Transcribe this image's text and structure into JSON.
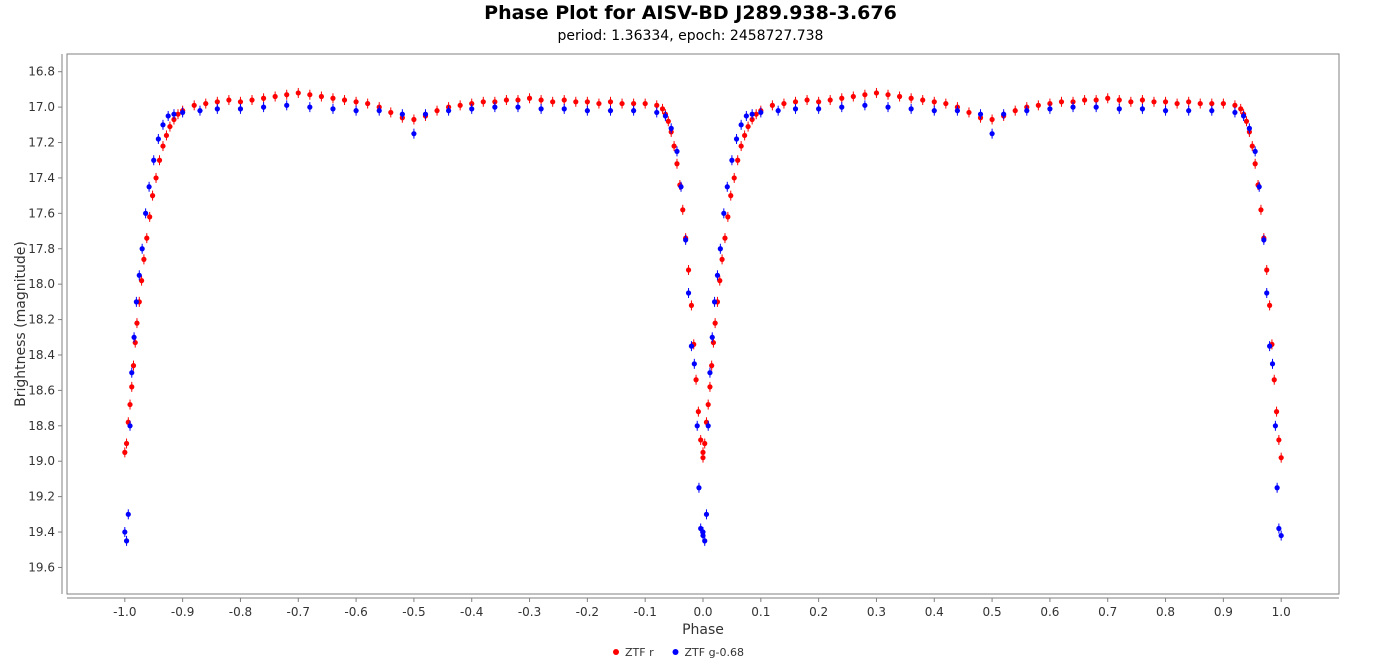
{
  "chart_data": {
    "type": "scatter",
    "title": "Phase Plot for AISV-BD J289.938-3.676",
    "subtitle": "period: 1.36334, epoch: 2458727.738",
    "xlabel": "Phase",
    "ylabel": "Brightness (magnitude)",
    "xlim": [
      -1.1,
      1.1
    ],
    "ylim": [
      16.7,
      19.75
    ],
    "y_inverted": true,
    "x_ticks": [
      "-1.0",
      "-0.9",
      "-0.8",
      "-0.7",
      "-0.6",
      "-0.5",
      "-0.4",
      "-0.3",
      "-0.2",
      "-0.1",
      "0.0",
      "0.1",
      "0.2",
      "0.3",
      "0.4",
      "0.5",
      "0.6",
      "0.7",
      "0.8",
      "0.9",
      "1.0"
    ],
    "y_ticks": [
      "16.8",
      "17.0",
      "17.2",
      "17.4",
      "17.6",
      "17.8",
      "18.0",
      "18.2",
      "18.4",
      "18.6",
      "18.8",
      "19.0",
      "19.2",
      "19.4",
      "19.6"
    ],
    "grid": false,
    "legend_placement": "bottom-center",
    "series": [
      {
        "name": "ZTF r",
        "color": "#ff0000",
        "points": [
          [
            0.0,
            18.95
          ],
          [
            0.003,
            18.9
          ],
          [
            0.006,
            18.78
          ],
          [
            0.009,
            18.68
          ],
          [
            0.012,
            18.58
          ],
          [
            0.015,
            18.46
          ],
          [
            0.018,
            18.33
          ],
          [
            0.021,
            18.22
          ],
          [
            0.025,
            18.1
          ],
          [
            0.029,
            17.98
          ],
          [
            0.033,
            17.86
          ],
          [
            0.038,
            17.74
          ],
          [
            0.043,
            17.62
          ],
          [
            0.048,
            17.5
          ],
          [
            0.054,
            17.4
          ],
          [
            0.06,
            17.3
          ],
          [
            0.066,
            17.22
          ],
          [
            0.072,
            17.16
          ],
          [
            0.078,
            17.11
          ],
          [
            0.085,
            17.07
          ],
          [
            0.092,
            17.04
          ],
          [
            0.1,
            17.02
          ],
          [
            0.12,
            16.99
          ],
          [
            0.14,
            16.98
          ],
          [
            0.16,
            16.97
          ],
          [
            0.18,
            16.96
          ],
          [
            0.2,
            16.97
          ],
          [
            0.22,
            16.96
          ],
          [
            0.24,
            16.95
          ],
          [
            0.26,
            16.94
          ],
          [
            0.28,
            16.93
          ],
          [
            0.3,
            16.92
          ],
          [
            0.32,
            16.93
          ],
          [
            0.34,
            16.94
          ],
          [
            0.36,
            16.95
          ],
          [
            0.38,
            16.96
          ],
          [
            0.4,
            16.97
          ],
          [
            0.42,
            16.98
          ],
          [
            0.44,
            17.0
          ],
          [
            0.46,
            17.03
          ],
          [
            0.48,
            17.06
          ],
          [
            0.5,
            17.07
          ],
          [
            0.52,
            17.05
          ],
          [
            0.54,
            17.02
          ],
          [
            0.56,
            17.0
          ],
          [
            0.58,
            16.99
          ],
          [
            0.6,
            16.98
          ],
          [
            0.62,
            16.97
          ],
          [
            0.64,
            16.97
          ],
          [
            0.66,
            16.96
          ],
          [
            0.68,
            16.96
          ],
          [
            0.7,
            16.95
          ],
          [
            0.72,
            16.96
          ],
          [
            0.74,
            16.97
          ],
          [
            0.76,
            16.96
          ],
          [
            0.78,
            16.97
          ],
          [
            0.8,
            16.97
          ],
          [
            0.82,
            16.98
          ],
          [
            0.84,
            16.97
          ],
          [
            0.86,
            16.98
          ],
          [
            0.88,
            16.98
          ],
          [
            0.9,
            16.98
          ],
          [
            0.92,
            16.99
          ],
          [
            0.93,
            17.01
          ],
          [
            0.935,
            17.04
          ],
          [
            0.94,
            17.08
          ],
          [
            0.945,
            17.14
          ],
          [
            0.95,
            17.22
          ],
          [
            0.955,
            17.32
          ],
          [
            0.96,
            17.44
          ],
          [
            0.965,
            17.58
          ],
          [
            0.97,
            17.74
          ],
          [
            0.975,
            17.92
          ],
          [
            0.98,
            18.12
          ],
          [
            0.984,
            18.34
          ],
          [
            0.988,
            18.54
          ],
          [
            0.992,
            18.72
          ],
          [
            0.996,
            18.88
          ],
          [
            1.0,
            18.98
          ]
        ]
      },
      {
        "name": "ZTF g-0.68",
        "color": "#0000ff",
        "points": [
          [
            0.0,
            19.4
          ],
          [
            0.003,
            19.45
          ],
          [
            0.006,
            19.3
          ],
          [
            0.009,
            18.8
          ],
          [
            0.012,
            18.5
          ],
          [
            0.016,
            18.3
          ],
          [
            0.02,
            18.1
          ],
          [
            0.025,
            17.95
          ],
          [
            0.03,
            17.8
          ],
          [
            0.036,
            17.6
          ],
          [
            0.042,
            17.45
          ],
          [
            0.05,
            17.3
          ],
          [
            0.058,
            17.18
          ],
          [
            0.066,
            17.1
          ],
          [
            0.075,
            17.05
          ],
          [
            0.085,
            17.04
          ],
          [
            0.1,
            17.03
          ],
          [
            0.13,
            17.02
          ],
          [
            0.16,
            17.01
          ],
          [
            0.2,
            17.01
          ],
          [
            0.24,
            17.0
          ],
          [
            0.28,
            16.99
          ],
          [
            0.32,
            17.0
          ],
          [
            0.36,
            17.01
          ],
          [
            0.4,
            17.02
          ],
          [
            0.44,
            17.02
          ],
          [
            0.48,
            17.04
          ],
          [
            0.5,
            17.15
          ],
          [
            0.52,
            17.04
          ],
          [
            0.56,
            17.02
          ],
          [
            0.6,
            17.01
          ],
          [
            0.64,
            17.0
          ],
          [
            0.68,
            17.0
          ],
          [
            0.72,
            17.01
          ],
          [
            0.76,
            17.01
          ],
          [
            0.8,
            17.02
          ],
          [
            0.84,
            17.02
          ],
          [
            0.88,
            17.02
          ],
          [
            0.92,
            17.03
          ],
          [
            0.935,
            17.05
          ],
          [
            0.945,
            17.12
          ],
          [
            0.955,
            17.25
          ],
          [
            0.962,
            17.45
          ],
          [
            0.97,
            17.75
          ],
          [
            0.975,
            18.05
          ],
          [
            0.98,
            18.35
          ],
          [
            0.985,
            18.45
          ],
          [
            0.99,
            18.8
          ],
          [
            0.993,
            19.15
          ],
          [
            0.996,
            19.38
          ],
          [
            1.0,
            19.42
          ]
        ]
      }
    ]
  },
  "legend": [
    {
      "label": "ZTF r",
      "color": "#ff0000"
    },
    {
      "label": "ZTF g-0.68",
      "color": "#0000ff"
    }
  ]
}
